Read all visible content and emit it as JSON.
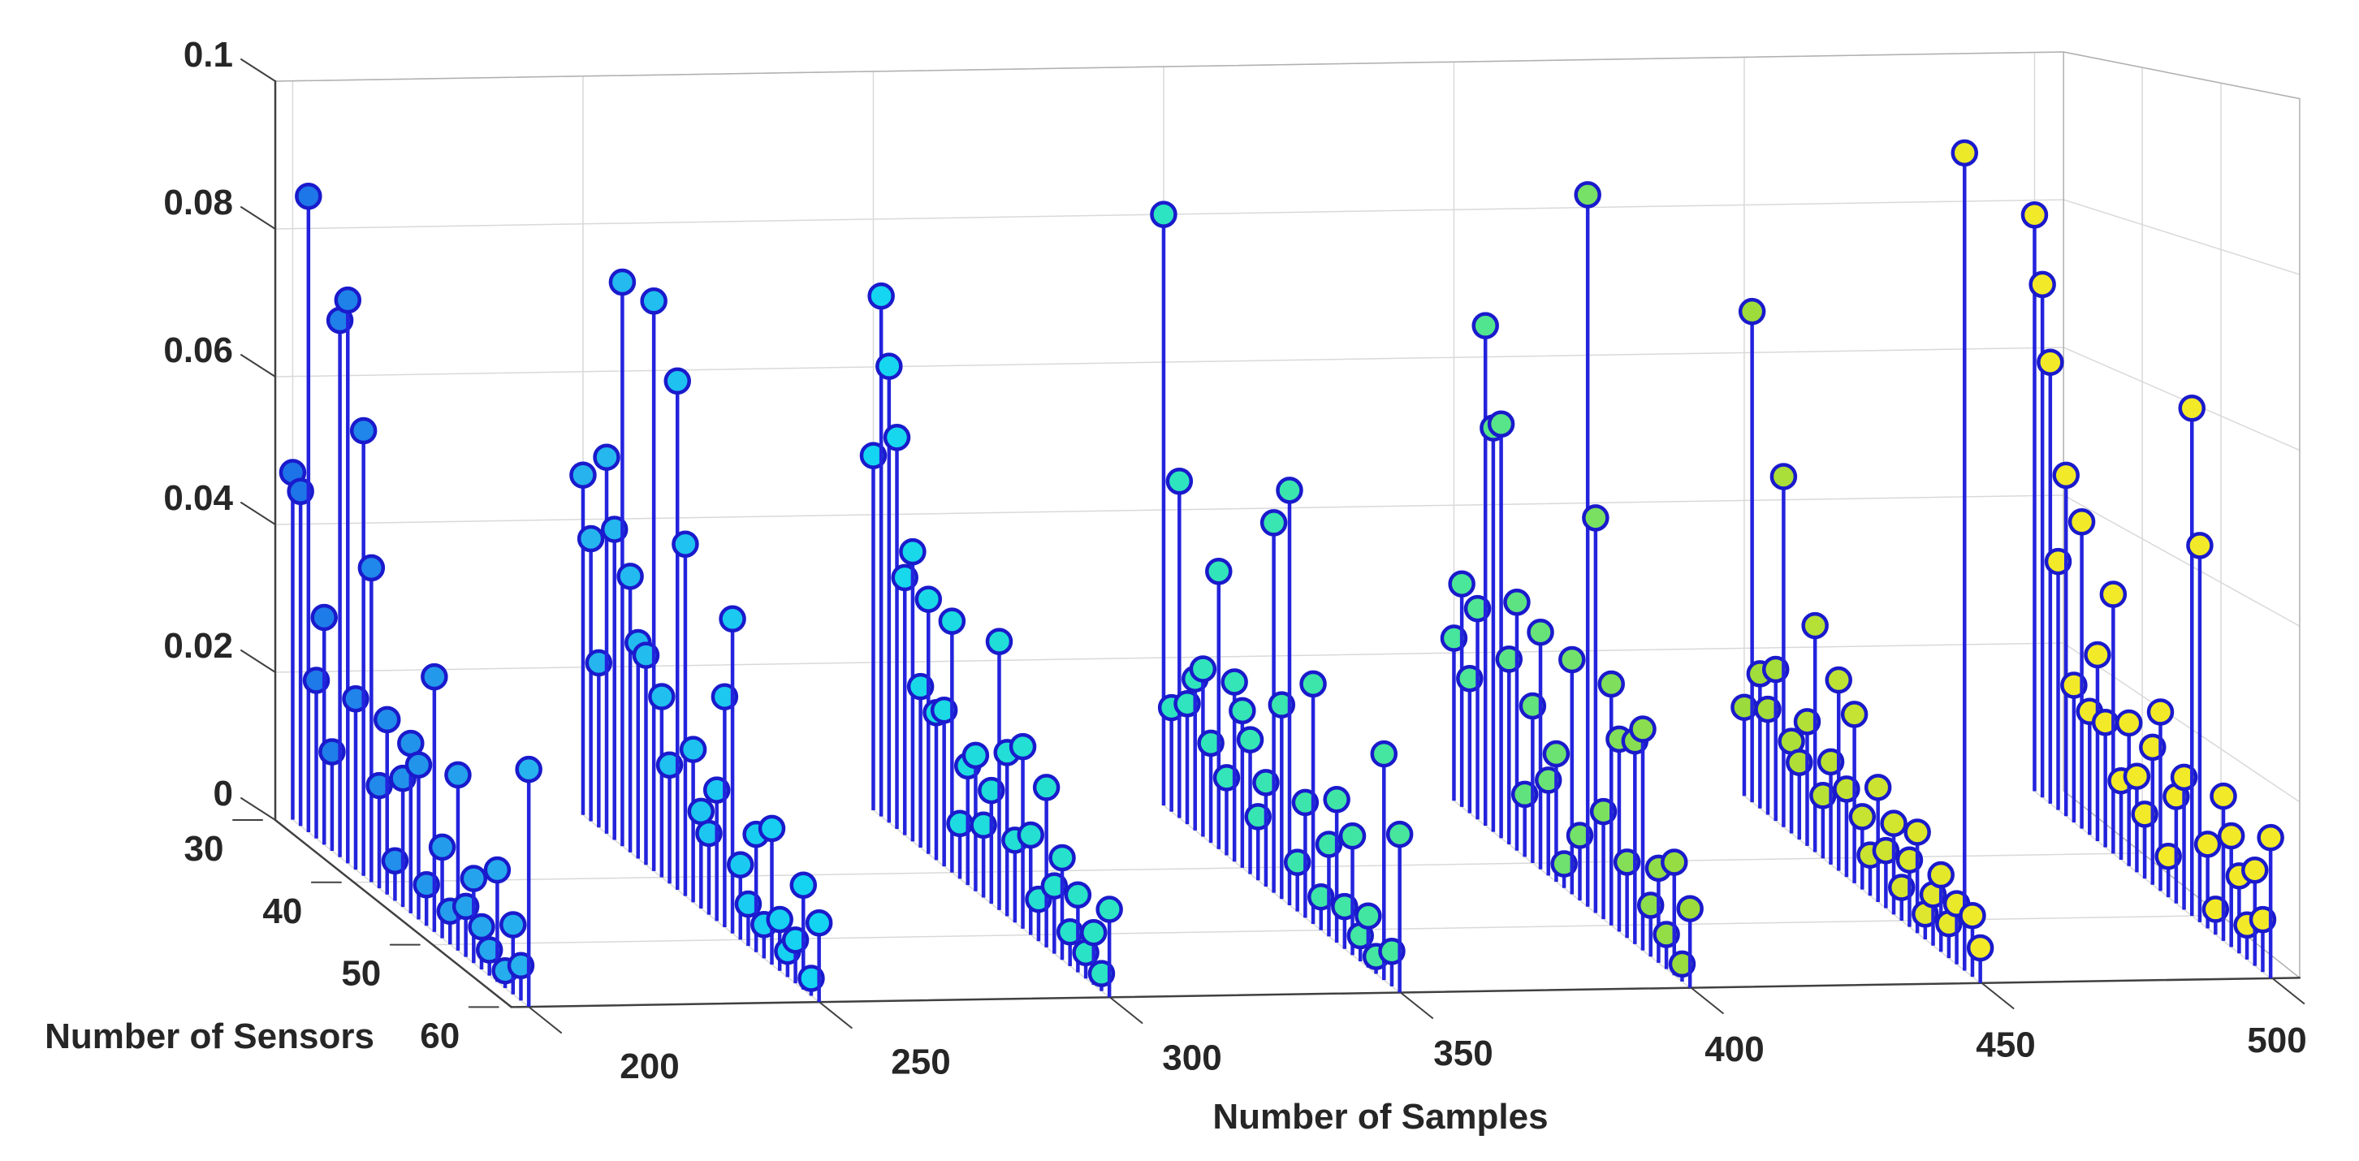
{
  "chart_data": {
    "type": "stem3",
    "title": "",
    "xlabel": "Number of Samples",
    "ylabel": "Number of Sensors",
    "zlabel": "",
    "x_tick_labels": [
      "200",
      "250",
      "300",
      "350",
      "400",
      "450",
      "500"
    ],
    "y_tick_labels": [
      "30",
      "40",
      "50",
      "60"
    ],
    "z_tick_labels": [
      "0",
      "0.02",
      "0.04",
      "0.06",
      "0.08",
      "0.1"
    ],
    "x_ticks": [
      200,
      250,
      300,
      350,
      400,
      450,
      500
    ],
    "y_ticks": [
      30,
      40,
      50,
      60
    ],
    "z_ticks": [
      0,
      0.02,
      0.04,
      0.06,
      0.08,
      0.1
    ],
    "xlim": [
      200,
      500
    ],
    "ylim": [
      30,
      60
    ],
    "zlim": [
      0,
      0.1
    ],
    "grid": true,
    "legend": "none",
    "sensors_start": 30,
    "sensors_step": 1,
    "series": [
      {
        "samples": 200,
        "values": [
          0.047,
          0.045,
          0.085,
          0.021,
          0.03,
          0.013,
          0.07,
          0.073,
          0.022,
          0.057,
          0.04,
          0.013,
          0.022,
          0.005,
          0.016,
          0.021,
          0.019,
          0.005,
          0.031,
          0.011,
          0.004,
          0.021,
          0.006,
          0.01,
          0.005,
          0.003,
          0.013,
          0.002,
          0.008,
          0.004,
          0.027
        ]
      },
      {
        "samples": 250,
        "values": [
          0.046,
          0.038,
          0.022,
          0.05,
          0.041,
          0.074,
          0.036,
          0.028,
          0.027,
          0.073,
          0.023,
          0.015,
          0.064,
          0.044,
          0.019,
          0.012,
          0.01,
          0.016,
          0.028,
          0.038,
          0.009,
          0.005,
          0.014,
          0.004,
          0.016,
          0.006,
          0.003,
          0.005,
          0.012,
          0.002,
          0.009
        ]
      },
      {
        "samples": 300,
        "values": [
          0.048,
          0.07,
          0.061,
          0.052,
          0.034,
          0.038,
          0.021,
          0.033,
          0.019,
          0.02,
          0.032,
          0.007,
          0.015,
          0.017,
          0.009,
          0.014,
          0.033,
          0.02,
          0.01,
          0.022,
          0.012,
          0.005,
          0.019,
          0.008,
          0.012,
          0.004,
          0.009,
          0.003,
          0.006,
          0.002,
          0.01
        ]
      },
      {
        "samples": 350,
        "values": [
          0.08,
          0.014,
          0.045,
          0.016,
          0.02,
          0.022,
          0.013,
          0.036,
          0.01,
          0.023,
          0.02,
          0.017,
          0.008,
          0.013,
          0.046,
          0.024,
          0.051,
          0.006,
          0.014,
          0.029,
          0.004,
          0.011,
          0.017,
          0.005,
          0.014,
          0.003,
          0.006,
          0.002,
          0.026,
          0.004,
          0.018
        ]
      },
      {
        "samples": 400,
        "values": [
          0.022,
          0.03,
          0.018,
          0.028,
          0.066,
          0.053,
          0.054,
          0.024,
          0.032,
          0.008,
          0.02,
          0.03,
          0.012,
          0.016,
          0.003,
          0.029,
          0.008,
          0.087,
          0.048,
          0.013,
          0.029,
          0.023,
          0.009,
          0.024,
          0.026,
          0.006,
          0.011,
          0.004,
          0.013,
          0.002,
          0.009
        ]
      },
      {
        "samples": 450,
        "values": [
          0.012,
          0.066,
          0.018,
          0.014,
          0.02,
          0.046,
          0.012,
          0.01,
          0.016,
          0.029,
          0.008,
          0.013,
          0.024,
          0.011,
          0.021,
          0.009,
          0.005,
          0.014,
          0.007,
          0.011,
          0.004,
          0.008,
          0.012,
          0.003,
          0.006,
          0.009,
          0.004,
          0.007,
          0.094,
          0.007,
          0.004
        ]
      },
      {
        "samples": 500,
        "values": [
          0.078,
          0.069,
          0.059,
          0.033,
          0.045,
          0.018,
          0.04,
          0.016,
          0.024,
          0.016,
          0.033,
          0.01,
          0.018,
          0.012,
          0.008,
          0.017,
          0.022,
          0.005,
          0.013,
          0.016,
          0.061,
          0.045,
          0.01,
          0.003,
          0.017,
          0.013,
          0.009,
          0.004,
          0.011,
          0.006,
          0.016
        ]
      }
    ],
    "colors": {
      "background": "#ffffff",
      "stem_line": "#2323dd",
      "marker_edge": "#1a1acc",
      "marker_gradient_stops": [
        "#1d73e8",
        "#27b3ee",
        "#14d6f2",
        "#2ce4c2",
        "#47e69c",
        "#9bdc3c",
        "#f2ea28"
      ],
      "grid_line": "#d9d9d9",
      "box_edge": "#b0b0b0",
      "axis_line": "#404040",
      "tick_text": "#262626"
    }
  }
}
